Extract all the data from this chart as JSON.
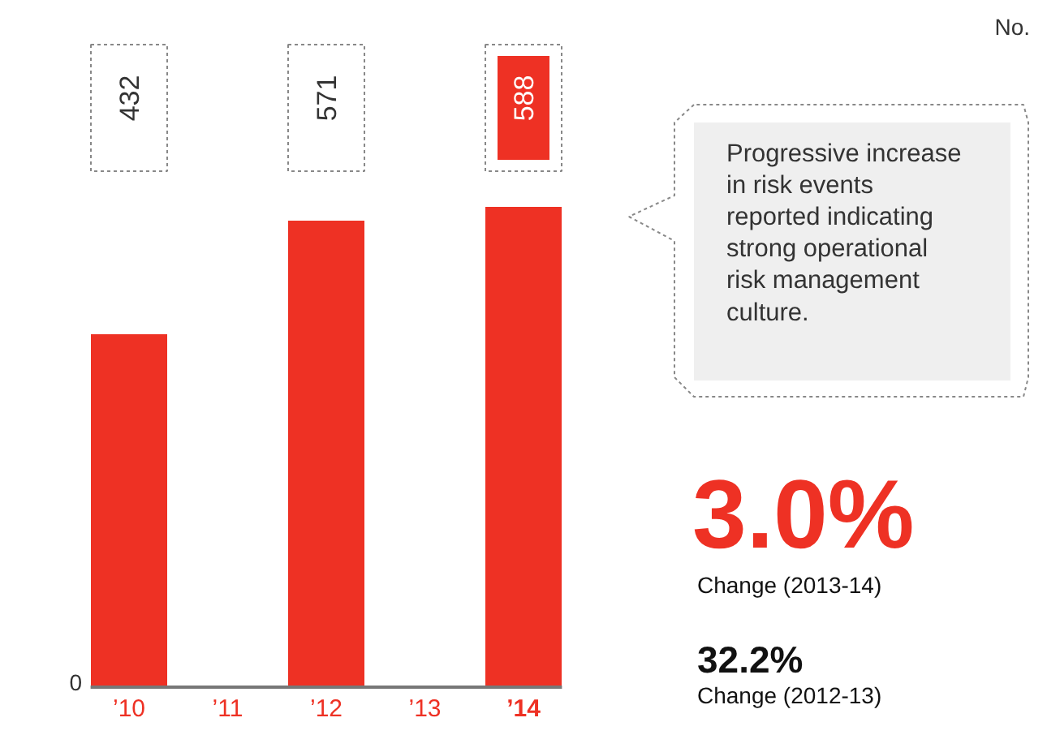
{
  "chart_data": {
    "type": "bar",
    "categories": [
      "’10",
      "’11",
      "’12",
      "’13",
      "’14"
    ],
    "values": [
      432,
      null,
      571,
      null,
      588
    ],
    "value_labels": [
      "432",
      null,
      "571",
      null,
      "588"
    ],
    "color": "#ee3124",
    "grid": false,
    "annotations": [
      "No.",
      "Progressive increase in risk events reported indicating strong operational risk management culture.",
      "3.0%",
      "Change (2013-14)",
      "32.2%",
      "Change (2012-13)",
      "0"
    ]
  }
}
